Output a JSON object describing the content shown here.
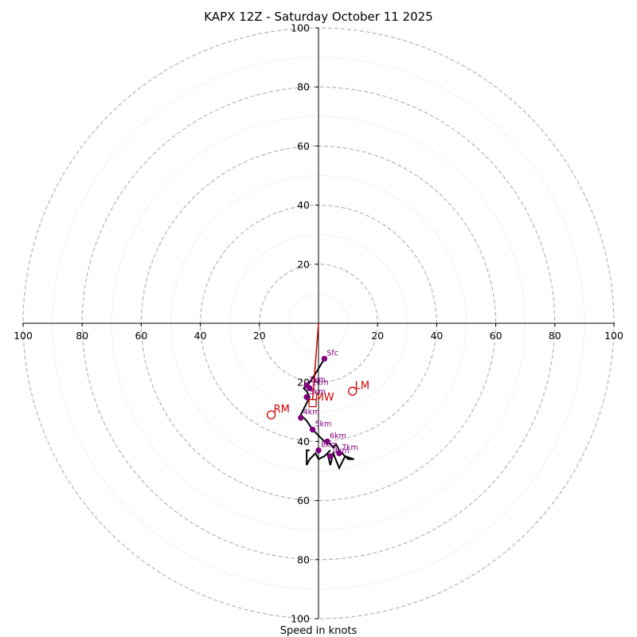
{
  "chart_data": {
    "type": "hodograph",
    "title": "KAPX 12Z - Saturday October 11 2025",
    "xlabel": "Speed in knots",
    "max_speed": 100,
    "major_rings": [
      20,
      40,
      60,
      80,
      100
    ],
    "minor_rings": [
      10,
      30,
      50,
      70,
      90
    ],
    "x_ticks": [
      {
        "label": "100",
        "value": -100
      },
      {
        "label": "80",
        "value": -80
      },
      {
        "label": "60",
        "value": -60
      },
      {
        "label": "40",
        "value": -40
      },
      {
        "label": "20",
        "value": -20
      },
      {
        "label": "20",
        "value": 20
      },
      {
        "label": "40",
        "value": 40
      },
      {
        "label": "60",
        "value": 60
      },
      {
        "label": "80",
        "value": 80
      },
      {
        "label": "100",
        "value": 100
      }
    ],
    "y_ticks": [
      {
        "label": "100",
        "value": 100
      },
      {
        "label": "80",
        "value": 80
      },
      {
        "label": "60",
        "value": 60
      },
      {
        "label": "40",
        "value": 40
      },
      {
        "label": "20",
        "value": 20
      },
      {
        "label": "20",
        "value": -20
      },
      {
        "label": "40",
        "value": -40
      },
      {
        "label": "60",
        "value": -60
      },
      {
        "label": "80",
        "value": -80
      },
      {
        "label": "100",
        "value": -100
      }
    ],
    "trace": {
      "name": "wind profile",
      "color": "#000000",
      "u": [
        2,
        -1,
        -3,
        -4,
        -5,
        -4,
        -3,
        -4,
        -5,
        -6,
        -4,
        -2,
        0,
        2,
        3,
        4,
        5,
        6,
        7,
        8,
        9,
        10,
        11,
        12,
        9,
        7,
        5,
        4,
        3,
        3,
        4,
        2,
        0,
        -1,
        -3,
        -4,
        -4,
        -3
      ],
      "v": [
        -12,
        -17,
        -20,
        -21,
        -22,
        -23,
        -25,
        -27,
        -29,
        -31,
        -33,
        -36,
        -38,
        -40,
        -40,
        -41,
        -42,
        -41,
        -43,
        -44,
        -45,
        -46,
        -46,
        -46,
        -45,
        -49,
        -44,
        -48,
        -44,
        -44,
        -43,
        -45,
        -46,
        -44,
        -46,
        -48,
        -43,
        -43
      ]
    },
    "height_markers": {
      "color": "#800080",
      "points": [
        {
          "label": "Sfc",
          "u": 2,
          "v": -12
        },
        {
          "label": "1km",
          "u": -4,
          "v": -21
        },
        {
          "label": "2km",
          "u": -3,
          "v": -22
        },
        {
          "label": "3km",
          "u": -4,
          "v": -25
        },
        {
          "label": "4km",
          "u": -6,
          "v": -32
        },
        {
          "label": "5km",
          "u": -2,
          "v": -36
        },
        {
          "label": "6km",
          "u": 3,
          "v": -40
        },
        {
          "label": "7km",
          "u": 7,
          "v": -44
        },
        {
          "label": "8km",
          "u": 0,
          "v": -43
        },
        {
          "label": "9km",
          "u": 4,
          "v": -45
        }
      ]
    },
    "storm_motion": {
      "color": "#cc0000",
      "shear_line_from": {
        "u": 0,
        "v": 0
      },
      "shear_line_to": {
        "u": -2,
        "v": -26
      },
      "points": [
        {
          "label": "LM",
          "u": 11.5,
          "v": -23,
          "shape": "circle"
        },
        {
          "label": "RM",
          "u": -16,
          "v": -31,
          "shape": "circle"
        },
        {
          "label": "MW",
          "u": -2,
          "v": -27,
          "shape": "square"
        }
      ]
    }
  }
}
